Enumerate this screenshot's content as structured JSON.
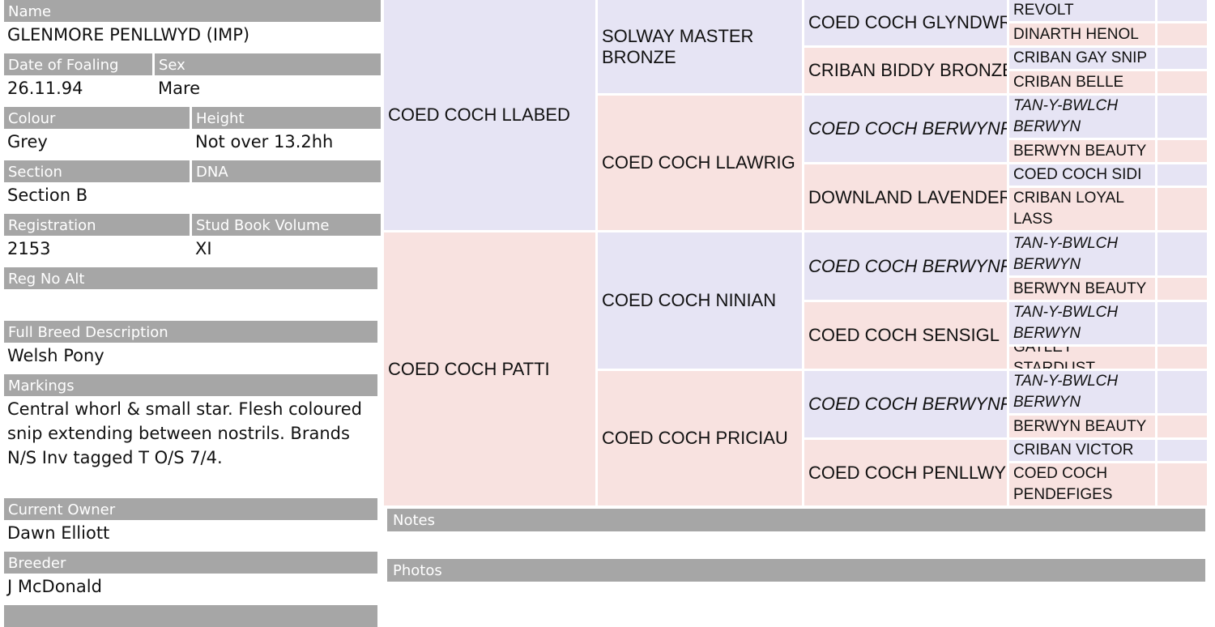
{
  "details": {
    "rows": [
      [
        {
          "label": "Name",
          "value": "GLENMORE PENLLWYD (IMP)"
        }
      ],
      [
        {
          "label": "Date of Foaling",
          "value": "26.11.94"
        },
        {
          "label": "Sex",
          "value": "Mare"
        }
      ],
      [
        {
          "label": "Colour",
          "value": "Grey"
        },
        {
          "label": "Height",
          "value": "Not over 13.2hh"
        }
      ],
      [
        {
          "label": "Section",
          "value": "Section B"
        },
        {
          "label": "DNA"
        }
      ],
      [
        {
          "label": "Registration",
          "value": "2153"
        },
        {
          "label": "Stud Book Volume",
          "value": "XI"
        }
      ],
      [
        {
          "label": "Reg No Alt"
        }
      ],
      [
        {
          "label": "Full Breed Description",
          "value": "Welsh Pony"
        }
      ],
      [
        {
          "label": "Markings",
          "value": "Central whorl & small star. Flesh coloured snip extending between nostrils. Brands N/S Inv tagged T O/S 7/4."
        }
      ],
      [
        {
          "label": "Current Owner",
          "value": "Dawn Elliott"
        }
      ],
      [
        {
          "label": "Breeder",
          "value": "J McDonald"
        }
      ]
    ]
  },
  "pedigree": {
    "generations": [
      [
        "COED COCH LLABED",
        "COED COCH PATTI"
      ],
      [
        "SOLWAY MASTER BRONZE",
        "COED COCH LLAWRIG",
        "COED COCH NINIAN",
        "COED COCH PRICIAU"
      ],
      [
        "COED COCH GLYNDWR",
        "CRIBAN BIDDY BRONZE",
        "COED COCH BERWYNFA",
        "DOWNLAND LAVENDER",
        "COED COCH BERWYNFA",
        "COED COCH SENSIGL",
        "COED COCH BERWYNFA",
        "COED COCH PENLLWYD"
      ],
      [
        "REVOLT",
        "DINARTH HENOL",
        "CRIBAN GAY SNIP",
        "CRIBAN BELLE",
        "TAN-Y-BWLCH BERWYN",
        "BERWYN BEAUTY",
        "COED COCH SIDI",
        "CRIBAN LOYAL LASS",
        "TAN-Y-BWLCH BERWYN",
        "BERWYN BEAUTY",
        "TAN-Y-BWLCH BERWYN",
        "GATLEY STARDUST",
        "TAN-Y-BWLCH BERWYN",
        "BERWYN BEAUTY",
        "CRIBAN VICTOR",
        "COED COCH PENDEFIGES"
      ]
    ]
  },
  "sections": [
    "Notes",
    "Photos"
  ]
}
